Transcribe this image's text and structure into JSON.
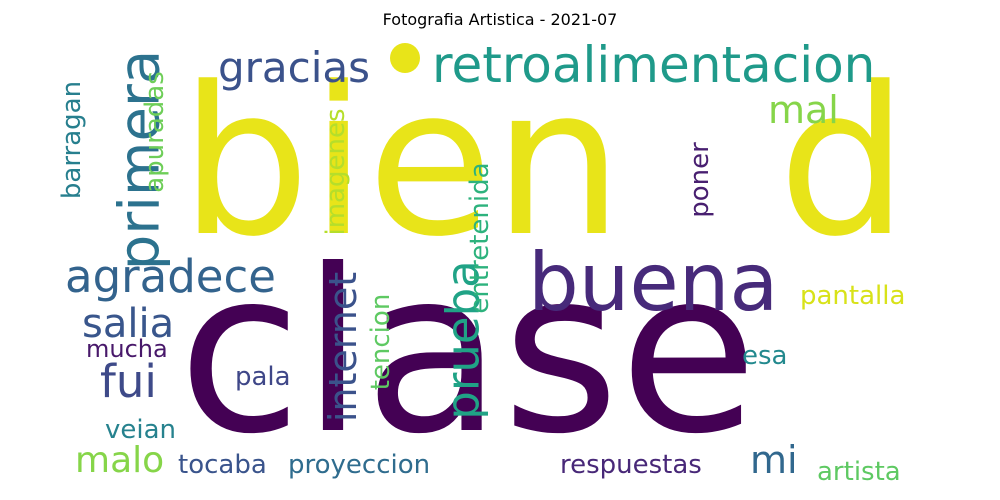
{
  "title": "Fotografia Artistica  - 2021-07",
  "chart_data": {
    "type": "wordcloud",
    "title": "Fotografia Artistica  - 2021-07",
    "words": [
      {
        "text": "bien",
        "color": "#e8e419"
      },
      {
        "text": "clase",
        "color": "#440154"
      },
      {
        "text": "d",
        "color": "#e8e419"
      },
      {
        "text": "buena",
        "color": "#472a7a"
      },
      {
        "text": "retroalimentacion",
        "color": "#1f9a8a"
      },
      {
        "text": "gracias",
        "color": "#3b528b"
      },
      {
        "text": "primera",
        "color": "#2c728e"
      },
      {
        "text": "agradece",
        "color": "#33638d"
      },
      {
        "text": "mal",
        "color": "#86d549"
      },
      {
        "text": "salia",
        "color": "#39568c"
      },
      {
        "text": "fui",
        "color": "#3e4a89"
      },
      {
        "text": "internet",
        "color": "#3b528b"
      },
      {
        "text": "prueba",
        "color": "#20a386"
      },
      {
        "text": "barragan",
        "color": "#277f8e"
      },
      {
        "text": "apuradas",
        "color": "#6ece58"
      },
      {
        "text": "imagenes",
        "color": "#b5de2b"
      },
      {
        "text": "entretenida",
        "color": "#2db27d"
      },
      {
        "text": "tencion",
        "color": "#5ec962"
      },
      {
        "text": "poner",
        "color": "#481f70"
      },
      {
        "text": "pantalla",
        "color": "#d8e219"
      },
      {
        "text": "mucha",
        "color": "#48186a"
      },
      {
        "text": "pala",
        "color": "#3f4788"
      },
      {
        "text": "esa",
        "color": "#23898e"
      },
      {
        "text": "veian",
        "color": "#26828e"
      },
      {
        "text": "malo",
        "color": "#86d549"
      },
      {
        "text": "tocaba",
        "color": "#3a548c"
      },
      {
        "text": "proyeccion",
        "color": "#2f6c8e"
      },
      {
        "text": "respuestas",
        "color": "#482878"
      },
      {
        "text": "mi",
        "color": "#31688e"
      },
      {
        "text": "artista",
        "color": "#5ec962"
      }
    ]
  }
}
